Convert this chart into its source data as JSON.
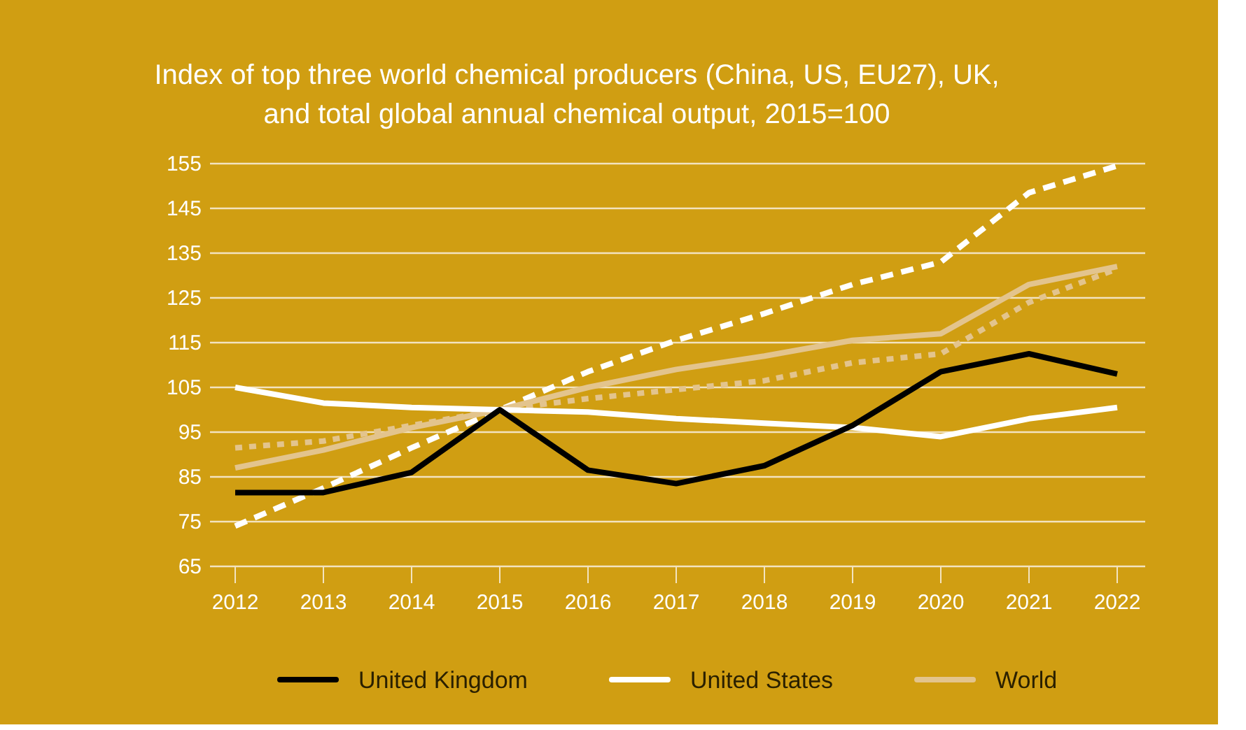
{
  "chart_data": {
    "type": "line",
    "title": "Index of top three world chemical producers (China, US, EU27), UK,\nand total global annual chemical output, 2015=100",
    "categories": [
      "2012",
      "2013",
      "2014",
      "2015",
      "2016",
      "2017",
      "2018",
      "2019",
      "2020",
      "2021",
      "2022"
    ],
    "series": [
      {
        "name": "United Kingdom",
        "color": "#000000",
        "values": [
          81.5,
          81.5,
          86,
          100,
          86.5,
          83.5,
          87.5,
          96.5,
          108.5,
          112.5,
          108
        ]
      },
      {
        "name": "United States",
        "color": "#ffffff",
        "values": [
          105,
          101.5,
          100.5,
          100,
          99.5,
          98,
          97,
          96,
          94,
          98,
          100.5
        ]
      },
      {
        "name": "World",
        "color": "#e3c48d",
        "values": [
          87,
          91,
          96,
          100,
          105,
          109,
          112,
          115.5,
          117,
          128,
          132
        ]
      },
      {
        "color": "#e3c48d",
        "line_style": "dotted",
        "values": [
          91.5,
          93,
          96.5,
          100,
          102.5,
          104.5,
          106.5,
          110.5,
          112.5,
          124,
          131.5
        ]
      },
      {
        "color": "#ffffff",
        "line_style": "dashed",
        "values": [
          74,
          82.5,
          91.5,
          100,
          108.5,
          115.5,
          121.5,
          128,
          133,
          148.5,
          154.5
        ]
      }
    ],
    "ylim": [
      65,
      155
    ],
    "yticks": [
      65,
      75,
      85,
      95,
      105,
      115,
      125,
      135,
      145,
      155
    ],
    "grid": "y",
    "legend": "bottom",
    "line_style": "solid"
  }
}
